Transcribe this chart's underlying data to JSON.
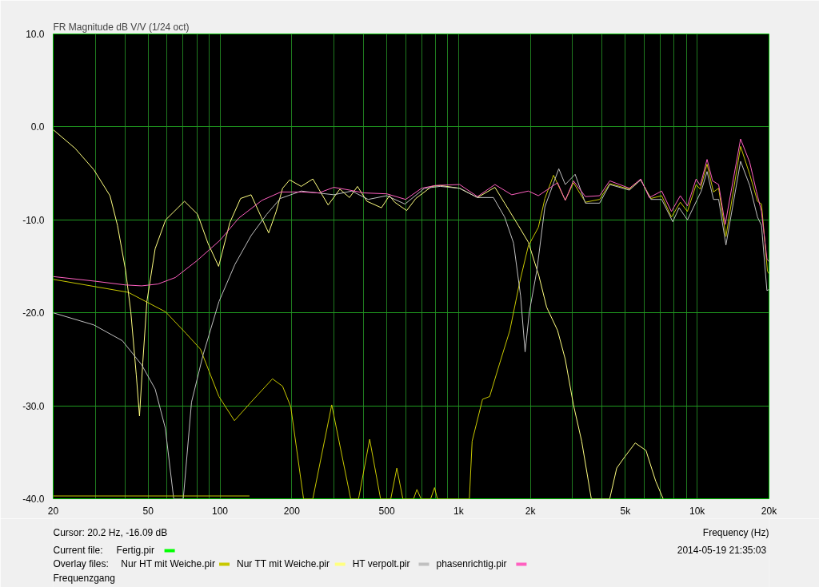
{
  "chart_data": {
    "type": "line",
    "title": "FR Magnitude dB V/V (1/24 oct)",
    "xlabel": "Frequency (Hz)",
    "log": "x",
    "grid": true,
    "legend": "bottom",
    "line_style": "solid",
    "marker": "none",
    "xlim": [
      20,
      20000
    ],
    "ylim": [
      -40,
      10
    ],
    "xticks": [
      20,
      {
        "value": 30,
        "label": null
      },
      {
        "value": 40,
        "label": null
      },
      50,
      {
        "value": 60,
        "label": null
      },
      {
        "value": 70,
        "label": null
      },
      {
        "value": 80,
        "label": null
      },
      {
        "value": 90,
        "label": null
      },
      100,
      200,
      {
        "value": 300,
        "label": null
      },
      {
        "value": 400,
        "label": null
      },
      500,
      {
        "value": 600,
        "label": null
      },
      {
        "value": 700,
        "label": null
      },
      {
        "value": 800,
        "label": null
      },
      {
        "value": 900,
        "label": null
      },
      {
        "value": 1000,
        "label": "1k"
      },
      {
        "value": 2000,
        "label": "2k"
      },
      {
        "value": 3000,
        "label": null
      },
      {
        "value": 4000,
        "label": null
      },
      {
        "value": 5000,
        "label": "5k"
      },
      {
        "value": 6000,
        "label": null
      },
      {
        "value": 7000,
        "label": null
      },
      {
        "value": 8000,
        "label": null
      },
      {
        "value": 9000,
        "label": null
      },
      {
        "value": 10000,
        "label": "10k"
      },
      {
        "value": 20000,
        "label": "20k"
      }
    ],
    "yticks": [
      {
        "value": -40,
        "label": "-40.0"
      },
      {
        "value": -30,
        "label": "-30.0"
      },
      {
        "value": -20,
        "label": "-20.0"
      },
      {
        "value": -10,
        "label": "-10.0"
      },
      {
        "value": 0,
        "label": "0.0"
      },
      {
        "value": 10,
        "label": "10.0"
      }
    ],
    "annotations": [
      "Cursor: 20.2 Hz, -16.09 dB",
      "Current file:",
      "Overlay files:",
      "2014-05-19  21:35:03",
      "Frequenzgang"
    ],
    "series": [
      {
        "name": "Fertig.pir",
        "color": "#00ff00"
      },
      {
        "name": "Nur HT mit Weiche.pir",
        "color": "#c8c800",
        "x": [
          20,
          41.3,
          59.2,
          72,
          82.8,
          99,
          115,
          135,
          166,
          183,
          198,
          224,
          245,
          294,
          353,
          381,
          424,
          471,
          520,
          551,
          584,
          648,
          669,
          696,
          764,
          793,
          815,
          1110,
          1140,
          1260,
          1350,
          1480,
          1640,
          1800,
          1960,
          2160,
          2300,
          2500,
          2800,
          3030,
          3400,
          3900,
          4300,
          5200,
          5800,
          6400,
          7100,
          7800,
          8500,
          9100,
          9900,
          10300,
          11000,
          11700,
          12300,
          13200,
          15200,
          16600,
          17900,
          18600,
          19700,
          20000
        ],
        "values": [
          -16.4,
          -17.8,
          -19.9,
          -22.2,
          -23.9,
          -29.0,
          -31.6,
          -29.6,
          -27.1,
          -27.9,
          -30.1,
          -40,
          -40,
          -29.9,
          -40,
          -40,
          -33.6,
          -40,
          -40,
          -36.7,
          -40,
          -40,
          -39.0,
          -40,
          -40,
          -38.8,
          -40,
          -40,
          -33.8,
          -29.3,
          -29.0,
          -25.6,
          -21.9,
          -16.8,
          -12.8,
          -10.8,
          -7.7,
          -5.2,
          -7.9,
          -6.0,
          -8.1,
          -7.8,
          -6.1,
          -6.7,
          -5.7,
          -7.7,
          -7.4,
          -9.7,
          -8.1,
          -9.1,
          -6.2,
          -6.7,
          -4.0,
          -7.0,
          -6.6,
          -11.8,
          -2.1,
          -5.1,
          -8.0,
          -8.3,
          -15.5,
          -15.8
        ]
      },
      {
        "name": "Nur TT mit Weiche.pir",
        "color": "#ffff80",
        "x": [
          20,
          24.7,
          29.6,
          34.6,
          37.2,
          40.2,
          42.3,
          44.6,
          46,
          47.5,
          49.4,
          53.5,
          59.2,
          71,
          80.6,
          89,
          98.7,
          110,
          122,
          135,
          149,
          160,
          172,
          183,
          196,
          219,
          245,
          284,
          318,
          349,
          377,
          413,
          475,
          513,
          540,
          606,
          662,
          772,
          837,
          1010,
          1200,
          1420,
          1560,
          1780,
          1960,
          2170,
          2340,
          2600,
          2800,
          3030,
          3280,
          3600,
          4300,
          4600,
          5000,
          5500,
          6100,
          6700,
          7200
        ],
        "values": [
          -0.3,
          -2.3,
          -4.6,
          -7.4,
          -10.6,
          -15.4,
          -19.9,
          -26.7,
          -31.1,
          -25.3,
          -18.8,
          -13.1,
          -10.0,
          -8.0,
          -9.4,
          -12.5,
          -15.0,
          -10.3,
          -7.7,
          -7.3,
          -9.7,
          -11.4,
          -9.1,
          -6.6,
          -5.7,
          -6.4,
          -5.6,
          -8.4,
          -6.7,
          -7.6,
          -6.4,
          -8.0,
          -8.7,
          -7.4,
          -8.1,
          -9.0,
          -7.7,
          -6.4,
          -6.3,
          -6.6,
          -7.6,
          -6.5,
          -8.2,
          -10.6,
          -12.4,
          -16.0,
          -19.4,
          -21.9,
          -25.0,
          -29.9,
          -33.8,
          -40,
          -40,
          -36.7,
          -35.4,
          -34.0,
          -34.8,
          -38.1,
          -40
        ]
      },
      {
        "name": "HT verpolt.pir",
        "color": "#c0c0c0",
        "x": [
          20,
          29.6,
          39,
          47,
          53.5,
          59,
          64,
          70.2,
          76,
          85,
          99,
          115.5,
          135,
          157,
          179,
          219,
          300,
          357,
          418,
          500,
          596,
          720,
          837,
          1010,
          1200,
          1400,
          1560,
          1700,
          1820,
          1900,
          1980,
          2130,
          2300,
          2630,
          2800,
          3080,
          3400,
          3900,
          4300,
          5200,
          5800,
          6400,
          7100,
          7900,
          8400,
          9100,
          10400,
          11000,
          11700,
          12300,
          13200,
          15200,
          16600,
          17900,
          18600,
          19600,
          20000
        ],
        "values": [
          -20.0,
          -21.3,
          -23.0,
          -25.6,
          -28.2,
          -32.4,
          -40,
          -40,
          -29.6,
          -24.5,
          -18.8,
          -14.8,
          -11.7,
          -9.4,
          -7.7,
          -6.9,
          -7.3,
          -6.9,
          -7.8,
          -7.4,
          -8.3,
          -6.6,
          -6.4,
          -6.6,
          -7.6,
          -7.6,
          -9.7,
          -12.5,
          -18.2,
          -24.2,
          -19.9,
          -15.4,
          -8.6,
          -4.5,
          -6.2,
          -5.1,
          -8.2,
          -8.2,
          -6.2,
          -6.8,
          -5.7,
          -7.8,
          -7.8,
          -10.2,
          -8.7,
          -10.0,
          -6.9,
          -4.8,
          -7.8,
          -7.8,
          -12.7,
          -3.7,
          -6.3,
          -9.7,
          -10.6,
          -17.6,
          -17.5
        ]
      },
      {
        "name": "phasenrichtig.pir",
        "color": "#ff60c0",
        "x": [
          20,
          30,
          40,
          47,
          55,
          65,
          80,
          100,
          120,
          150,
          180,
          220,
          260,
          300,
          350,
          400,
          500,
          600,
          700,
          800,
          1010,
          1200,
          1420,
          1670,
          1960,
          2160,
          2600,
          2800,
          3030,
          3400,
          3900,
          4300,
          5200,
          5800,
          6300,
          7100,
          7800,
          8500,
          9100,
          9900,
          10300,
          11000,
          11600,
          12300,
          13100,
          15200,
          16600,
          17700,
          18600,
          19600,
          20000
        ],
        "values": [
          -16.1,
          -16.6,
          -17.0,
          -17.1,
          -16.9,
          -16.2,
          -14.4,
          -12.2,
          -9.8,
          -7.9,
          -7.0,
          -7.0,
          -7.1,
          -6.5,
          -6.8,
          -7.1,
          -7.2,
          -7.8,
          -6.6,
          -6.3,
          -6.2,
          -7.5,
          -6.2,
          -7.3,
          -6.9,
          -7.4,
          -6.0,
          -7.9,
          -5.8,
          -7.5,
          -7.4,
          -5.8,
          -6.6,
          -5.6,
          -7.6,
          -6.9,
          -9.1,
          -7.4,
          -8.5,
          -5.6,
          -6.3,
          -3.5,
          -5.8,
          -6.2,
          -10.5,
          -1.3,
          -3.8,
          -6.9,
          -9.1,
          -14.2,
          -14.5
        ]
      },
      {
        "color": "#c8c800",
        "x": [
          20,
          133
        ],
        "values": [
          -39.7,
          -39.7
        ]
      }
    ]
  }
}
